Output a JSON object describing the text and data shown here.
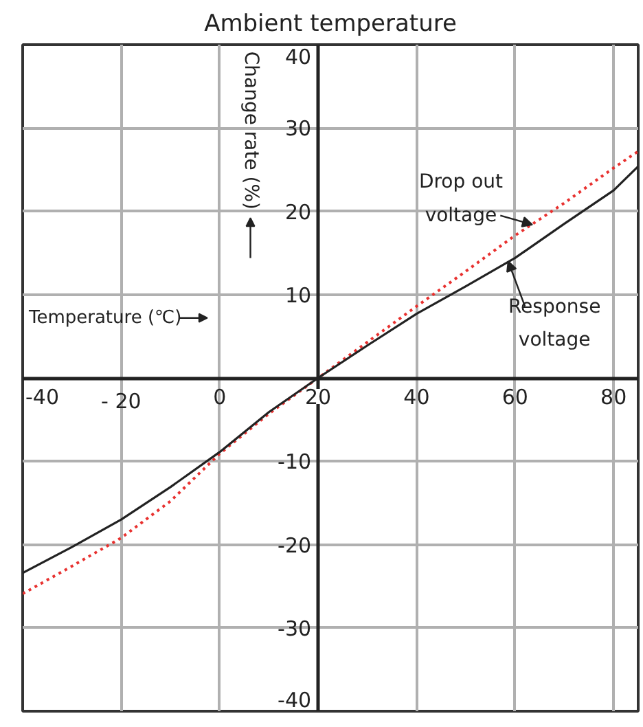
{
  "chart_data": {
    "type": "line",
    "title": "Ambient temperature",
    "xlabel": "Temperature (℃)",
    "ylabel": "Change rate (%)",
    "xlim": [
      -40,
      85
    ],
    "ylim": [
      -40,
      40
    ],
    "xticks": [
      -40,
      {
        "value": -20,
        "label": "- 20"
      },
      0,
      20,
      40,
      60,
      80
    ],
    "yticks": [
      -40,
      -30,
      -20,
      -10,
      10,
      20,
      30,
      40
    ],
    "grid": true,
    "legend": false,
    "x": [
      -40,
      -30,
      -20,
      -10,
      0,
      10,
      20,
      30,
      40,
      50,
      60,
      70,
      80,
      85
    ],
    "series": [
      {
        "name": "Drop out voltage",
        "color": "#e8312f",
        "line_style": "dotted",
        "values": [
          -25.9,
          -22.6,
          -19.2,
          -14.8,
          -9.1,
          -4.3,
          0,
          4.3,
          8.6,
          12.8,
          17.1,
          21.0,
          25.2,
          27.2
        ]
      },
      {
        "name": "Response voltage",
        "color": "#222222",
        "line_style": "solid",
        "values": [
          -23.4,
          -20.3,
          -17.0,
          -13.1,
          -8.9,
          -4.1,
          0,
          3.9,
          7.7,
          11.0,
          14.4,
          18.5,
          22.5,
          25.4
        ]
      }
    ]
  }
}
